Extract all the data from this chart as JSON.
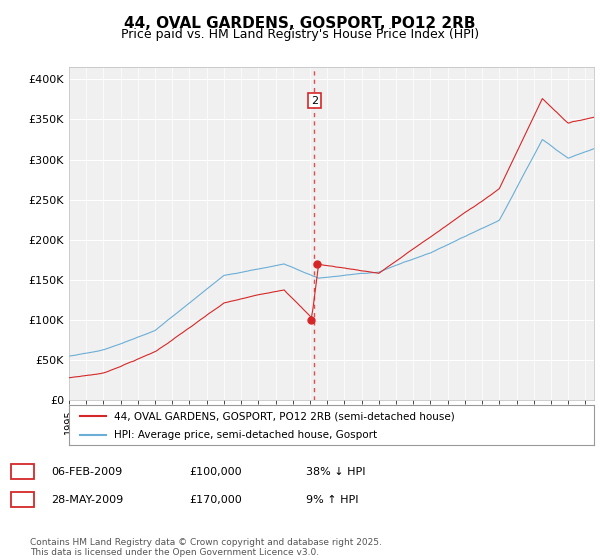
{
  "title": "44, OVAL GARDENS, GOSPORT, PO12 2RB",
  "subtitle": "Price paid vs. HM Land Registry's House Price Index (HPI)",
  "ylabel_ticks": [
    "£0",
    "£50K",
    "£100K",
    "£150K",
    "£200K",
    "£250K",
    "£300K",
    "£350K",
    "£400K"
  ],
  "ytick_values": [
    0,
    50000,
    100000,
    150000,
    200000,
    250000,
    300000,
    350000,
    400000
  ],
  "ylim": [
    0,
    415000
  ],
  "xlim_start": 1995.0,
  "xlim_end": 2025.5,
  "sale1_year": 2009.09,
  "sale1_price": 100000,
  "sale2_year": 2009.41,
  "sale2_price": 170000,
  "hpi_color": "#6baed6",
  "price_color": "#d62728",
  "background_color": "#ffffff",
  "plot_bg_color": "#f0f0f0",
  "grid_color": "#ffffff",
  "legend1_text": "44, OVAL GARDENS, GOSPORT, PO12 2RB (semi-detached house)",
  "legend2_text": "HPI: Average price, semi-detached house, Gosport",
  "table_row1": [
    "1",
    "06-FEB-2009",
    "£100,000",
    "38% ↓ HPI"
  ],
  "table_row2": [
    "2",
    "28-MAY-2009",
    "£170,000",
    "9% ↑ HPI"
  ],
  "footnote": "Contains HM Land Registry data © Crown copyright and database right 2025.\nThis data is licensed under the Open Government Licence v3.0.",
  "title_fontsize": 11,
  "subtitle_fontsize": 9,
  "tick_fontsize": 8
}
